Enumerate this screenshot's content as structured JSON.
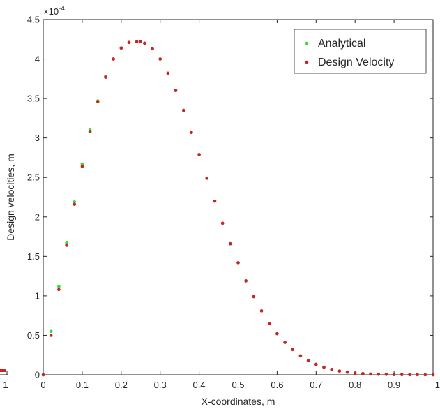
{
  "chart_data": {
    "type": "scatter",
    "title": "",
    "xlabel": "X-coordinates, m",
    "ylabel": "Design velocities, m",
    "y_exponent_label": "×10",
    "y_exponent_power": "-4",
    "xlim": [
      0,
      1
    ],
    "ylim": [
      0,
      4.5
    ],
    "y_scale_factor": 0.0001,
    "x_ticks": [
      0,
      0.1,
      0.2,
      0.3,
      0.4,
      0.5,
      0.6,
      0.7,
      0.8,
      0.9,
      1
    ],
    "x_tick_labels": [
      "0",
      "0.1",
      "0.2",
      "0.3",
      "0.4",
      "0.5",
      "0.6",
      "0.7",
      "0.8",
      "0.9",
      "1"
    ],
    "y_ticks": [
      0,
      0.5,
      1,
      1.5,
      2,
      2.5,
      3,
      3.5,
      4,
      4.5
    ],
    "y_tick_labels": [
      "0",
      "0.5",
      "1",
      "1.5",
      "2",
      "2.5",
      "3",
      "3.5",
      "4",
      "4.5"
    ],
    "grid": false,
    "legend_position": "top-right",
    "series": [
      {
        "name": "Analytical",
        "color": "#33dd33",
        "marker": "dot",
        "x": [
          0,
          0.02,
          0.04,
          0.06,
          0.08,
          0.1,
          0.12,
          0.14,
          0.16,
          0.18,
          0.2,
          0.22,
          0.24,
          0.25,
          0.26,
          0.28,
          0.3,
          0.32,
          0.34,
          0.36,
          0.38,
          0.4,
          0.42,
          0.44,
          0.46,
          0.48,
          0.5,
          0.52,
          0.54,
          0.56,
          0.58,
          0.6,
          0.62,
          0.64,
          0.66,
          0.68,
          0.7,
          0.72,
          0.74,
          0.76,
          0.78,
          0.8,
          0.82,
          0.84,
          0.86,
          0.88,
          0.9,
          0.92,
          0.94,
          0.96,
          0.98,
          1
        ],
        "y": [
          0,
          0.55,
          1.12,
          1.67,
          2.19,
          2.67,
          3.1,
          3.47,
          3.78,
          4.0,
          4.14,
          4.21,
          4.22,
          4.22,
          4.2,
          4.13,
          4.0,
          3.82,
          3.6,
          3.35,
          3.07,
          2.79,
          2.49,
          2.2,
          1.92,
          1.66,
          1.42,
          1.19,
          0.99,
          0.81,
          0.65,
          0.52,
          0.41,
          0.32,
          0.24,
          0.18,
          0.133,
          0.096,
          0.068,
          0.047,
          0.032,
          0.022,
          0.015,
          0.01,
          0.007,
          0.005,
          0.003,
          0.002,
          0.001,
          0.001,
          0.0,
          0.0
        ]
      },
      {
        "name": "Design Velocity",
        "color": "#cc2222",
        "marker": "dot",
        "x": [
          0,
          0.02,
          0.04,
          0.06,
          0.08,
          0.1,
          0.12,
          0.14,
          0.16,
          0.18,
          0.2,
          0.22,
          0.24,
          0.25,
          0.26,
          0.28,
          0.3,
          0.32,
          0.34,
          0.36,
          0.38,
          0.4,
          0.42,
          0.44,
          0.46,
          0.48,
          0.5,
          0.52,
          0.54,
          0.56,
          0.58,
          0.6,
          0.62,
          0.64,
          0.66,
          0.68,
          0.7,
          0.72,
          0.74,
          0.76,
          0.78,
          0.8,
          0.82,
          0.84,
          0.86,
          0.88,
          0.9,
          0.92,
          0.94,
          0.96,
          0.98,
          1
        ],
        "y": [
          0,
          0.5,
          1.08,
          1.64,
          2.16,
          2.64,
          3.08,
          3.46,
          3.77,
          4.0,
          4.14,
          4.21,
          4.22,
          4.22,
          4.2,
          4.13,
          4.0,
          3.82,
          3.6,
          3.35,
          3.07,
          2.79,
          2.49,
          2.2,
          1.92,
          1.66,
          1.42,
          1.19,
          0.99,
          0.81,
          0.65,
          0.52,
          0.41,
          0.32,
          0.24,
          0.18,
          0.133,
          0.096,
          0.068,
          0.047,
          0.032,
          0.022,
          0.015,
          0.01,
          0.007,
          0.005,
          0.003,
          0.002,
          0.001,
          0.001,
          0.0,
          0.0
        ]
      }
    ]
  },
  "left_panel_fragment": {
    "tick_label": "1",
    "marker_color": "#cc2222"
  }
}
